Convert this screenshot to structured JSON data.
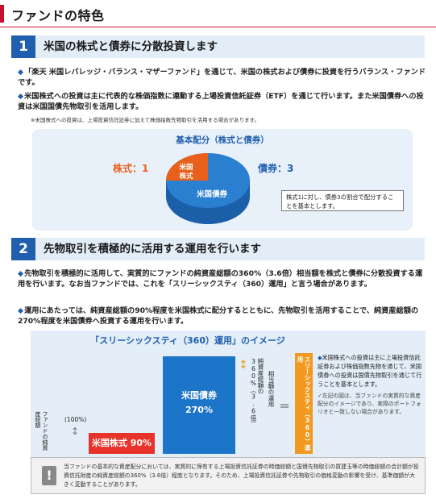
{
  "page_title": "ファンドの特色",
  "section1": {
    "number": "1",
    "title": "米国の株式と債券に分散投資します",
    "bullets": [
      "「楽天 米国レバレッジ・バランス・マザーファンド」を通じて、米国の株式および債券に投資を行うバランス・ファンドです。",
      "米国株式への投資は主に代表的な株価指数に連動する上場投資信託証券（ETF）を通じて行います。また米国債券への投資は米国国債先物取引を活用します。"
    ],
    "note": "※米国株式への投資は、上場投資信託証券に加えて株価指数先物取引を活用する場合があります。",
    "allocation": {
      "title": "基本配分（株式と債券）",
      "stock_label": "株式：1",
      "bond_label": "債券：3",
      "stock_slice_label_1": "米国",
      "stock_slice_label_2": "株式",
      "bond_slice_label": "米国債券",
      "note": "株式1に対し、債券3の割合で配分することを基本とします。",
      "stock_share": 0.25,
      "bond_share": 0.75,
      "colors": {
        "stock": "#e8601c",
        "bond": "#2a7fd0"
      }
    }
  },
  "section2": {
    "number": "2",
    "title": "先物取引を積極的に活用する運用を行います",
    "bullets": [
      "先物取引を積極的に活用して、実質的にファンドの純資産総額の360%（3.6倍）相当額を株式と債券に分散投資する運用を行います。なお当ファンドでは、これを「スリーシックスティ（360）運用」と言う場合があります。",
      "運用にあたっては、純資産総額の90%程度を米国株式に配分するとともに、先物取引を活用することで、純資産総額の270%程度を米国債券へ投資する運用を行います。"
    ],
    "image": {
      "title": "「スリーシックスティ（360）運用」のイメージ",
      "fund_nav_label": "ファンドの純資産総額",
      "percent_100": "(100%)",
      "stock_block": "米国株式 90%",
      "bond_block_1": "米国債券",
      "bond_block_2": "270%",
      "nav_360_label": "純資産総額の360%（3.6倍）",
      "equiv_label": "相当額の運用",
      "equals": "＝",
      "strip_label": "スリーシックスティ（360）運用",
      "explain_1": "米国株式への投資は主に上場投資信託証券および株価指数先物を通じて、米国債券への投資は国債先物取引を通じて行うことを基本とします。",
      "explain_2": "左記の図は、当ファンドの実質的な資産配分のイメージであり、実際のポートフォリオと一致しない場合があります。"
    }
  },
  "caution": {
    "icon": "!",
    "text": "当ファンドの基本的な資産配分においては、実質的に保有する上場投資信託証券の時価総額と国債先物取引の買建玉等の時価総額の合計額が投資信託財産の純資産総額の360%（3.6倍）程度となります。そのため、上場投資信託証券や先物取引の価格変動の影響を受け、基準価額が大きく変動することがあります。"
  }
}
